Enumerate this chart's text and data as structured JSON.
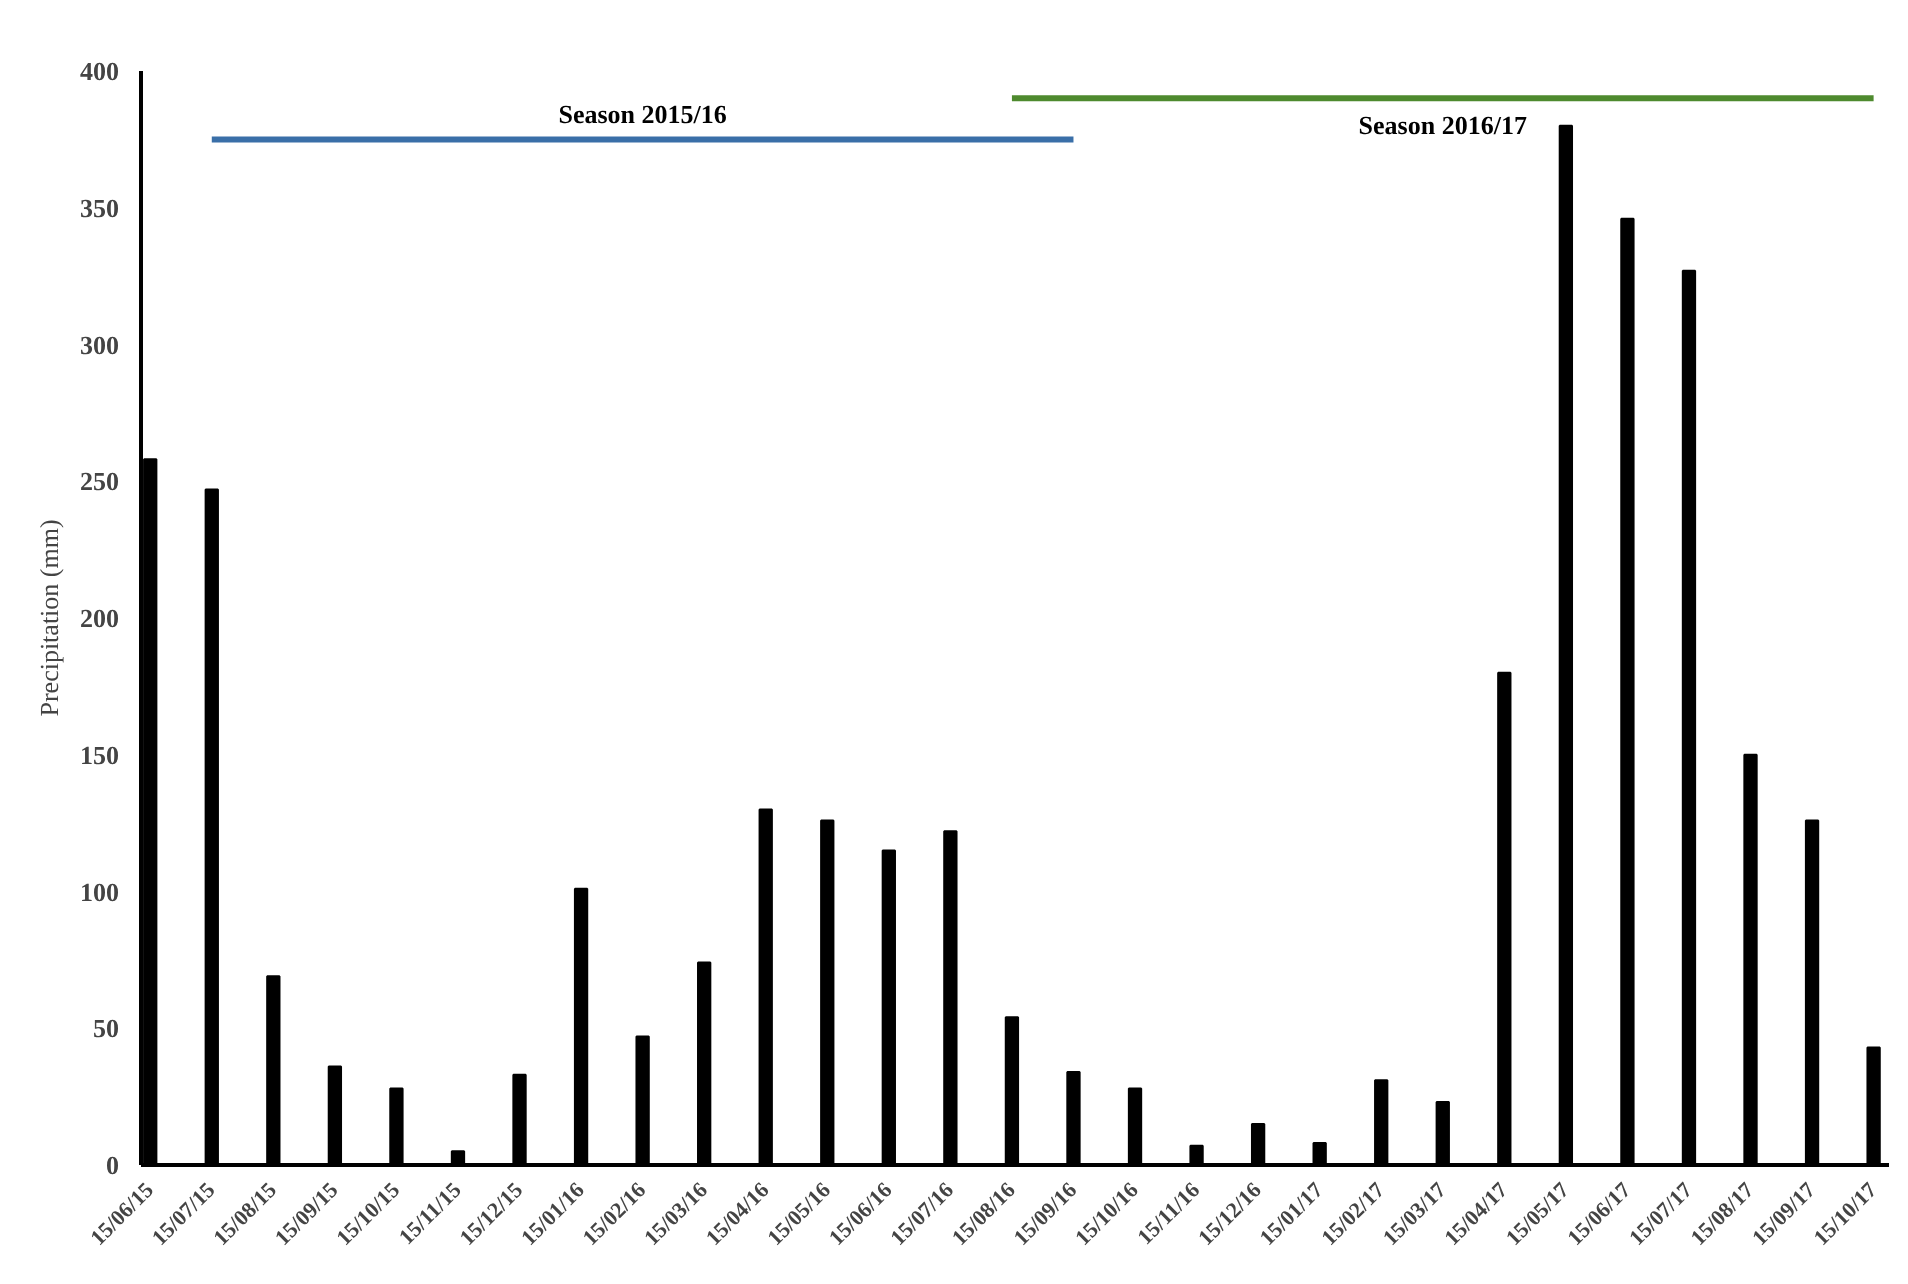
{
  "chart_data": {
    "type": "bar",
    "ylabel": "Precipitation (mm)",
    "categories": [
      "15/06/15",
      "15/07/15",
      "15/08/15",
      "15/09/15",
      "15/10/15",
      "15/11/15",
      "15/12/15",
      "15/01/16",
      "15/02/16",
      "15/03/16",
      "15/04/16",
      "15/05/16",
      "15/06/16",
      "15/07/16",
      "15/08/16",
      "15/09/16",
      "15/10/16",
      "15/11/16",
      "15/12/16",
      "15/01/17",
      "15/02/17",
      "15/03/17",
      "15/04/17",
      "15/05/17",
      "15/06/17",
      "15/07/17",
      "15/08/17",
      "15/09/17",
      "15/10/17"
    ],
    "series": [
      {
        "color": "#000000",
        "values": [
          258,
          247,
          69,
          36,
          28,
          5,
          33,
          101,
          47,
          74,
          130,
          126,
          115,
          122,
          54,
          34,
          28,
          7,
          15,
          8,
          31,
          23,
          180,
          380,
          346,
          327,
          150,
          126,
          43
        ]
      },
      {
        "type": "line",
        "name": "Season 2015/16",
        "color": "#3a6fa8",
        "values": [
          null,
          375,
          375,
          375,
          375,
          375,
          375,
          375,
          375,
          375,
          375,
          375,
          375,
          375,
          375,
          375,
          null,
          null,
          null,
          null,
          null,
          null,
          null,
          null,
          null,
          null,
          null,
          null,
          null
        ]
      },
      {
        "type": "line",
        "name": "Season 2016/17",
        "color": "#4e8a2e",
        "values": [
          null,
          null,
          null,
          null,
          null,
          null,
          null,
          null,
          null,
          null,
          null,
          null,
          null,
          null,
          390,
          390,
          390,
          390,
          390,
          390,
          390,
          390,
          390,
          390,
          390,
          390,
          390,
          390,
          390
        ]
      }
    ],
    "ylim": [
      0,
      400
    ],
    "yticks": [
      0,
      50,
      100,
      150,
      200,
      250,
      300,
      350,
      400
    ],
    "grid": false,
    "marker": "none",
    "line_style": "solid"
  }
}
